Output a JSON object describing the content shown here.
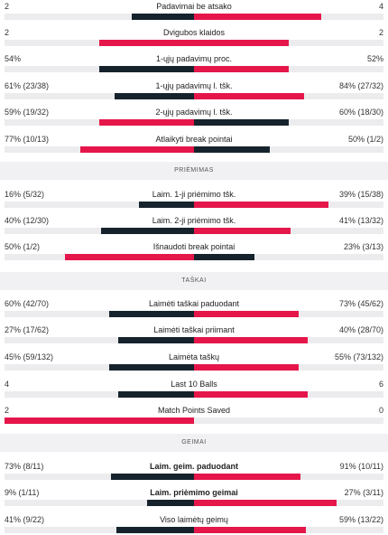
{
  "colors": {
    "dark": "#16232d",
    "red": "#e5164a",
    "track": "#ececef",
    "section_bg": "#f1f1f4"
  },
  "sections": [
    {
      "title": "",
      "rows": [
        {
          "label": "Padavimai be atsako",
          "left": "2",
          "right": "4",
          "lv": 0.33,
          "rv": 0.67,
          "lwin": false
        },
        {
          "label": "Dvigubos klaidos",
          "left": "2",
          "right": "2",
          "lv": 0.5,
          "rv": 0.5,
          "lwin": true,
          "rwin": true
        },
        {
          "label": "1-ųjų padavimų proc.",
          "left": "54%",
          "right": "52%",
          "lv": 0.5,
          "rv": 0.5,
          "lwin": false
        },
        {
          "label": "1-ųjų padavimų l. tšk.",
          "left": "61% (23/38)",
          "right": "84% (27/32)",
          "lv": 0.42,
          "rv": 0.58,
          "lwin": false
        },
        {
          "label": "2-ųjų padavimų l. tšk.",
          "left": "59% (19/32)",
          "right": "60% (18/30)",
          "lv": 0.5,
          "rv": 0.5,
          "lwin": true,
          "rwin": false
        },
        {
          "label": "Atlaikyti break pointai",
          "left": "77% (10/13)",
          "right": "50% (1/2)",
          "lv": 0.6,
          "rv": 0.4,
          "lwin": true
        }
      ]
    },
    {
      "title": "PRIĖMIMAS",
      "rows": [
        {
          "label": "Laim. 1-ji priėmimo tšk.",
          "left": "16% (5/32)",
          "right": "39% (15/38)",
          "lv": 0.29,
          "rv": 0.71,
          "lwin": false
        },
        {
          "label": "Laim. 2-ji priėmimo tšk.",
          "left": "40% (12/30)",
          "right": "41% (13/32)",
          "lv": 0.49,
          "rv": 0.51,
          "lwin": false
        },
        {
          "label": "Išnaudoti break pointai",
          "left": "50% (1/2)",
          "right": "23% (3/13)",
          "lv": 0.68,
          "rv": 0.32,
          "lwin": true
        }
      ]
    },
    {
      "title": "TAŠKAI",
      "rows": [
        {
          "label": "Laimėti taškai paduodant",
          "left": "60% (42/70)",
          "right": "73% (45/62)",
          "lv": 0.45,
          "rv": 0.55,
          "lwin": false
        },
        {
          "label": "Laimėti taškai priimant",
          "left": "27% (17/62)",
          "right": "40% (28/70)",
          "lv": 0.4,
          "rv": 0.6,
          "lwin": false
        },
        {
          "label": "Laimėta taškų",
          "left": "45% (59/132)",
          "right": "55% (73/132)",
          "lv": 0.45,
          "rv": 0.55,
          "lwin": false
        },
        {
          "label": "Last 10 Balls",
          "left": "4",
          "right": "6",
          "lv": 0.4,
          "rv": 0.6,
          "lwin": false
        },
        {
          "label": "Match Points Saved",
          "left": "2",
          "right": "0",
          "lv": 1.0,
          "rv": 0.0,
          "lwin": true
        }
      ]
    },
    {
      "title": "GEIMAI",
      "rows": [
        {
          "label": "Laim. geim. paduodant",
          "left": "73% (8/11)",
          "right": "91% (10/11)",
          "lv": 0.44,
          "rv": 0.56,
          "lwin": false
        },
        {
          "label": "Laim. priėmimo geimai",
          "left": "9% (1/11)",
          "right": "27% (3/11)",
          "lv": 0.25,
          "rv": 0.75,
          "lwin": false
        },
        {
          "label": "Viso laimėtų geimų",
          "left": "41% (9/22)",
          "right": "59% (13/22)",
          "lv": 0.41,
          "rv": 0.59,
          "lwin": false
        }
      ]
    }
  ]
}
